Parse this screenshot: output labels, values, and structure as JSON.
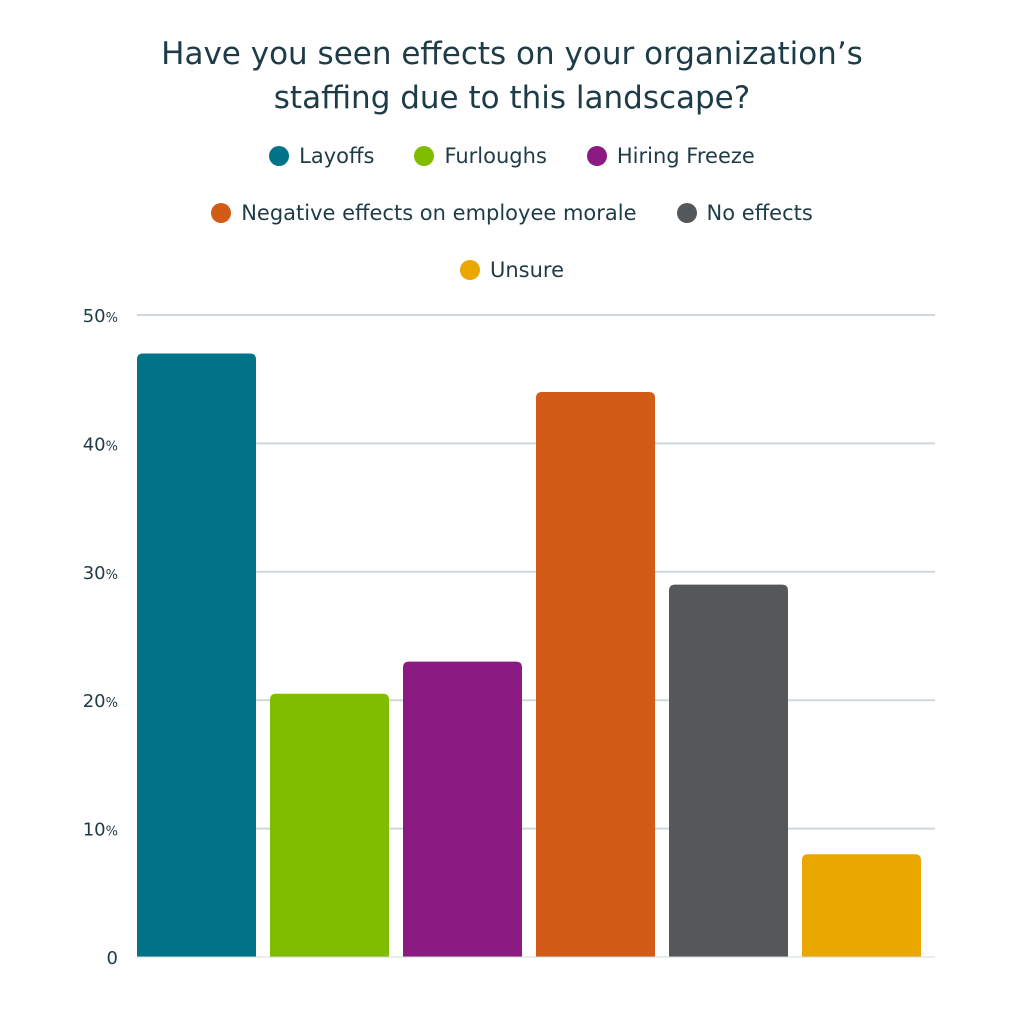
{
  "title_lines": [
    "Have you seen effects on your organization’s",
    "staffing due to this landscape?"
  ],
  "legend": [
    [
      {
        "label": "Layoffs",
        "color": "#007389"
      },
      {
        "label": "Furloughs",
        "color": "#80bd00"
      },
      {
        "label": "Hiring Freeze",
        "color": "#8b1b82"
      }
    ],
    [
      {
        "label": "Negative effects on employee morale",
        "color": "#d25c17"
      },
      {
        "label": "No effects",
        "color": "#55585a"
      }
    ],
    [
      {
        "label": "Unsure",
        "color": "#e9a700"
      }
    ]
  ],
  "chart_data": {
    "type": "bar",
    "categories": [
      "Layoffs",
      "Furloughs",
      "Hiring Freeze",
      "Negative effects on employee morale",
      "No effects",
      "Unsure"
    ],
    "values": [
      47,
      20.5,
      23,
      44,
      29,
      8
    ],
    "colors": [
      "#007389",
      "#80bd00",
      "#8b1b82",
      "#d25c17",
      "#55585a",
      "#e9a700"
    ],
    "ylim": [
      0,
      50
    ],
    "yticks": [
      {
        "value": 0,
        "label": "0",
        "unit": ""
      },
      {
        "value": 10,
        "label": "10",
        "unit": "%"
      },
      {
        "value": 20,
        "label": "20",
        "unit": "%"
      },
      {
        "value": 30,
        "label": "30",
        "unit": "%"
      },
      {
        "value": 40,
        "label": "40",
        "unit": "%"
      },
      {
        "value": 50,
        "label": "50",
        "unit": "%"
      }
    ],
    "grid": true,
    "legend_position": "top"
  }
}
